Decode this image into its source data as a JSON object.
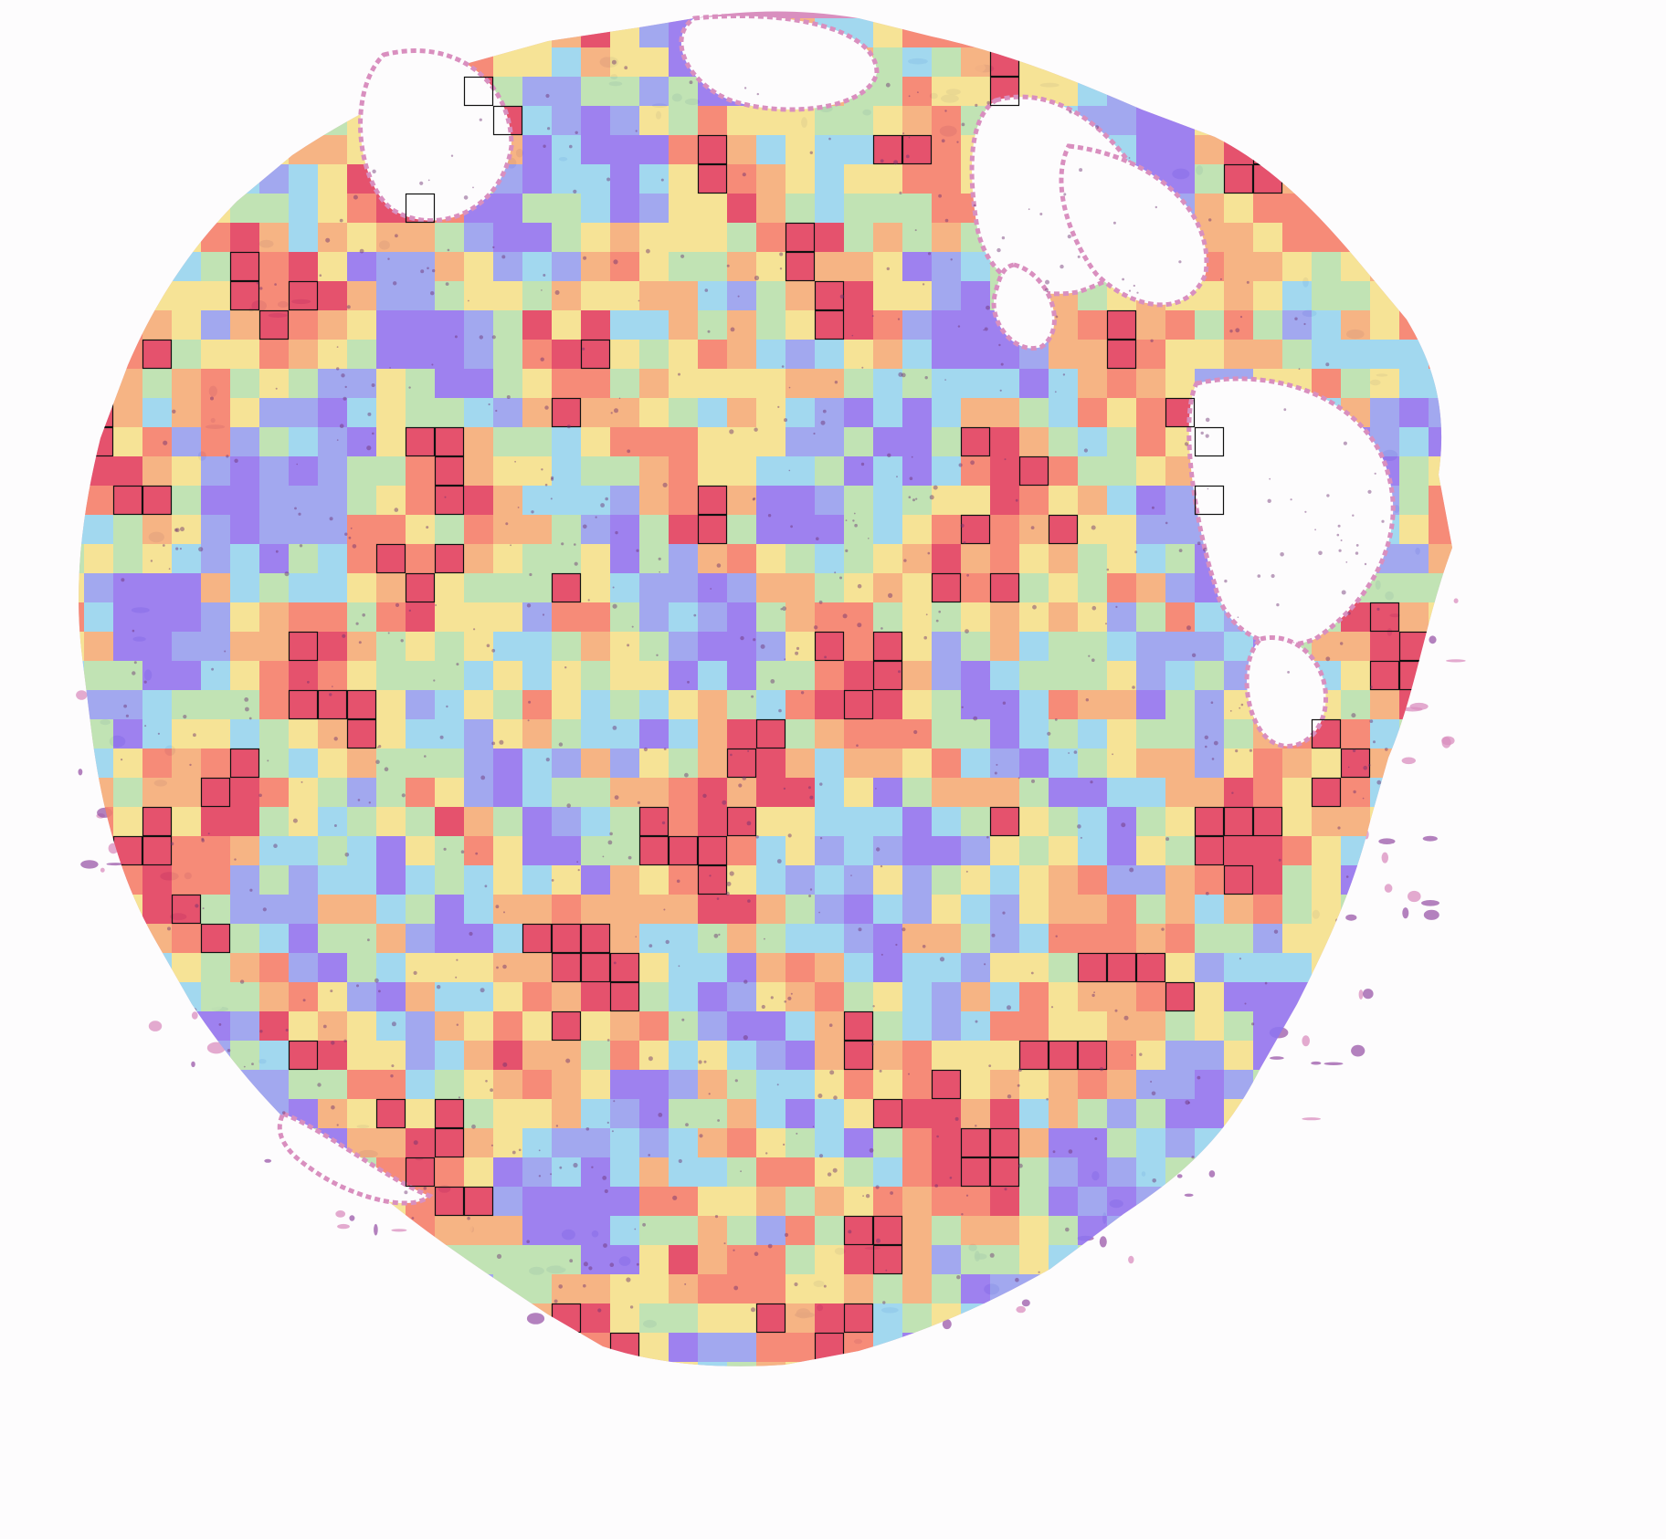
{
  "image": {
    "subject": "tissue-microarray-core",
    "stain_colors": {
      "background": "#fdfcfd",
      "tissue_pink": "#d98fbf",
      "tissue_purple": "#9a58a8",
      "nuclei": "#6a2f6e"
    }
  },
  "heatmap_overlay": {
    "colormap": [
      "#8a7cff",
      "#8fb0ff",
      "#8ff0ff",
      "#b8ffb0",
      "#ffff88",
      "#ffc070",
      "#ff8a60",
      "#e83d52"
    ],
    "opacity": 0.75,
    "highlight_outline_color": "#111111"
  }
}
